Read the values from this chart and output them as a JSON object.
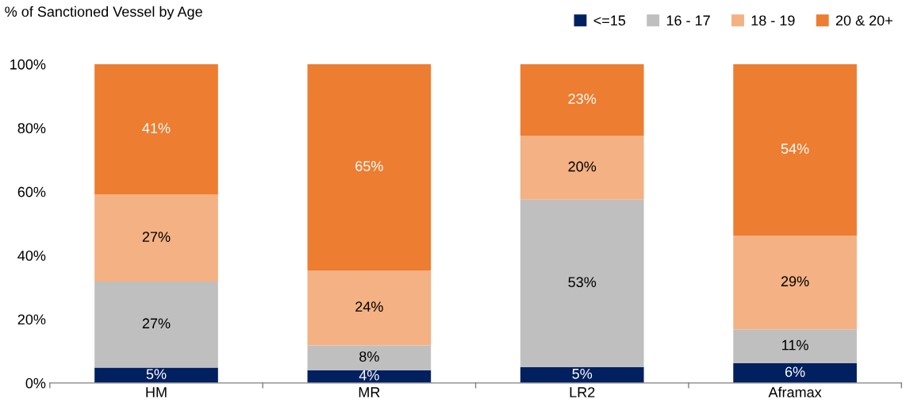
{
  "chart_data": {
    "type": "bar",
    "stacked": true,
    "title": "% of Sanctioned Vessel by Age",
    "categories": [
      "HM",
      "MR",
      "LR2",
      "Aframax"
    ],
    "series": [
      {
        "name": "<=15",
        "color": "#002060",
        "values": [
          4.8,
          4.0,
          5.0,
          6.2
        ],
        "value_labels": [
          "5%",
          "4%",
          "5%",
          "6%"
        ]
      },
      {
        "name": "16 - 17",
        "color": "#bfbfbf",
        "values": [
          27.0,
          7.8,
          52.5,
          10.6
        ],
        "value_labels": [
          "27%",
          "8%",
          "53%",
          "11%"
        ]
      },
      {
        "name": "18 - 19",
        "color": "#f4b183",
        "values": [
          27.3,
          23.5,
          20.0,
          29.4
        ],
        "value_labels": [
          "27%",
          "24%",
          "20%",
          "29%"
        ]
      },
      {
        "name": "20 & 20+",
        "color": "#ed7d31",
        "values": [
          40.9,
          64.7,
          22.5,
          53.8
        ],
        "value_labels": [
          "41%",
          "65%",
          "23%",
          "54%"
        ]
      }
    ],
    "ylim": [
      0,
      100
    ],
    "yticks": [
      {
        "value": 0,
        "label": "0%"
      },
      {
        "value": 20,
        "label": "20%"
      },
      {
        "value": 40,
        "label": "40%"
      },
      {
        "value": 60,
        "label": "60%"
      },
      {
        "value": 80,
        "label": "80%"
      },
      {
        "value": 100,
        "label": "100%"
      }
    ],
    "grid": false,
    "legend": "top right"
  }
}
